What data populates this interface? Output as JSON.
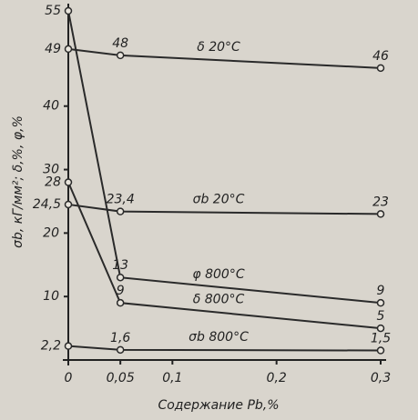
{
  "chart_data": {
    "type": "line",
    "x_label": "Содержание Pb,%",
    "y_label": "σb, кГ/мм²; δ,%, φ,%",
    "xlim": [
      0,
      0.3
    ],
    "xticks": [
      0,
      {
        "value": 0.05,
        "label": "0,05"
      },
      {
        "value": 0.1,
        "label": "0,1"
      },
      {
        "value": 0.2,
        "label": "0,2"
      },
      {
        "value": 0.3,
        "label": "0,3"
      }
    ],
    "ylim": [
      0,
      55
    ],
    "yticks": [
      10,
      20,
      30,
      40
    ],
    "grid": false,
    "x": [
      0,
      0.05,
      0.3
    ],
    "series": [
      {
        "name": "δ 20°C",
        "color": "#2a2a2a",
        "values": [
          49,
          48,
          46
        ],
        "value_labels": [
          "49",
          "48",
          "46"
        ]
      },
      {
        "name": "σb 20°C",
        "color": "#2a2a2a",
        "values": [
          24.5,
          23.4,
          23
        ],
        "value_labels": [
          "24,5",
          "23,4",
          "23"
        ]
      },
      {
        "name": "φ 800°C",
        "color": "#2a2a2a",
        "values": [
          55,
          13,
          9
        ],
        "value_labels": [
          "55",
          "13",
          "9"
        ]
      },
      {
        "name": "δ 800°C",
        "color": "#2a2a2a",
        "values": [
          28,
          9,
          5
        ],
        "value_labels": [
          "28",
          "9",
          "5"
        ]
      },
      {
        "name": "σb 800°C",
        "color": "#2a2a2a",
        "values": [
          2.2,
          1.6,
          1.5
        ],
        "value_labels": [
          "2,2",
          "1,6",
          "1,5"
        ]
      }
    ]
  }
}
